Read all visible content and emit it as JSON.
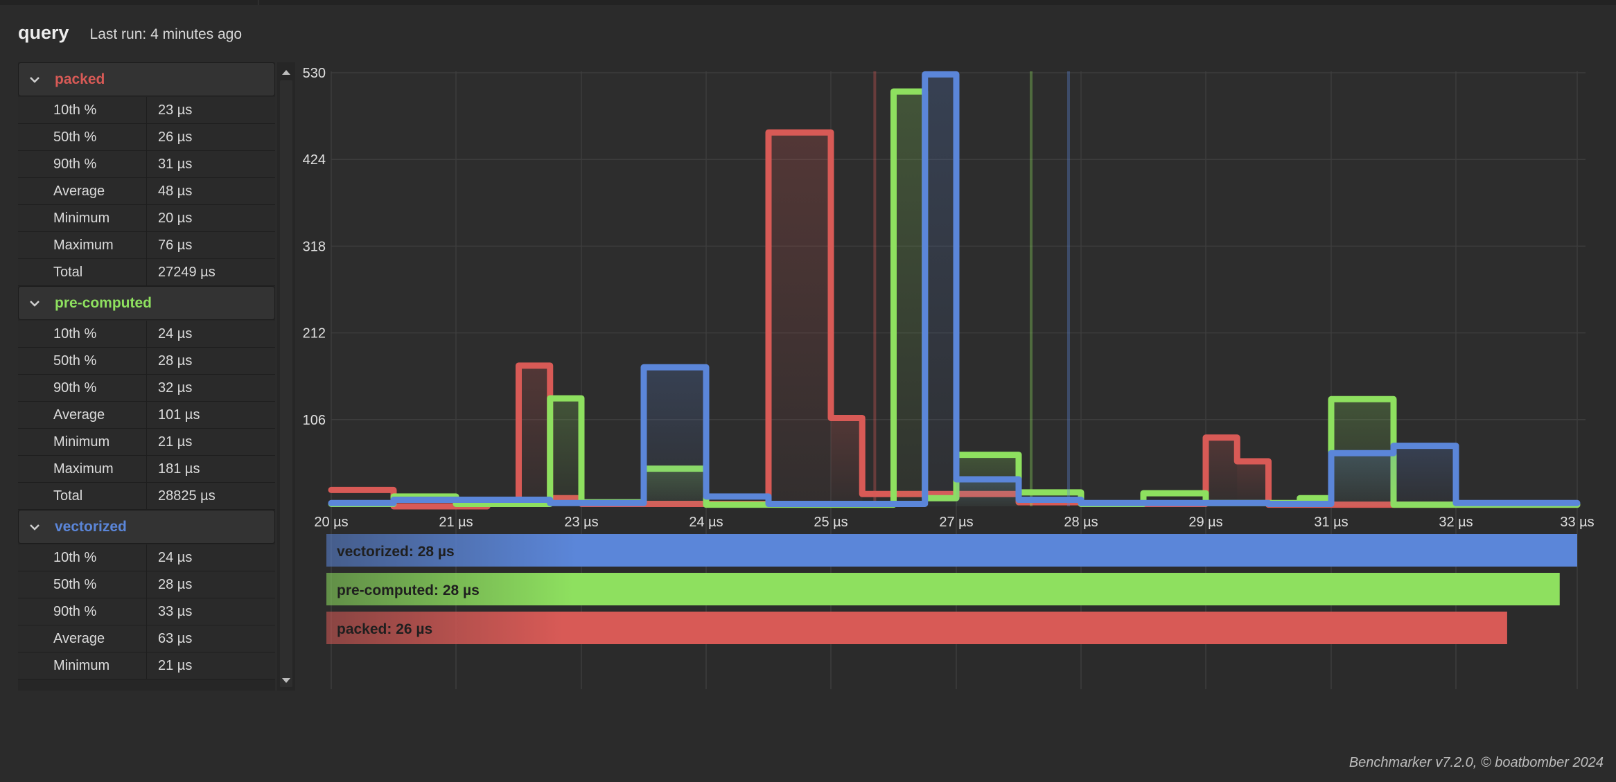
{
  "header": {
    "title": "query",
    "last_run": "Last run: 4 minutes ago"
  },
  "groups": [
    {
      "name": "packed",
      "color": "#d85a56",
      "expanded": true,
      "rows": [
        {
          "label": "10th %",
          "value": "23 µs"
        },
        {
          "label": "50th %",
          "value": "26 µs"
        },
        {
          "label": "90th %",
          "value": "31 µs"
        },
        {
          "label": "Average",
          "value": "48 µs"
        },
        {
          "label": "Minimum",
          "value": "20 µs"
        },
        {
          "label": "Maximum",
          "value": "76 µs"
        },
        {
          "label": "Total",
          "value": "27249 µs"
        }
      ]
    },
    {
      "name": "pre-computed",
      "color": "#8ee05f",
      "expanded": true,
      "rows": [
        {
          "label": "10th %",
          "value": "24 µs"
        },
        {
          "label": "50th %",
          "value": "28 µs"
        },
        {
          "label": "90th %",
          "value": "32 µs"
        },
        {
          "label": "Average",
          "value": "101 µs"
        },
        {
          "label": "Minimum",
          "value": "21 µs"
        },
        {
          "label": "Maximum",
          "value": "181 µs"
        },
        {
          "label": "Total",
          "value": "28825 µs"
        }
      ]
    },
    {
      "name": "vectorized",
      "color": "#5b86d9",
      "expanded": true,
      "rows": [
        {
          "label": "10th %",
          "value": "24 µs"
        },
        {
          "label": "50th %",
          "value": "28 µs"
        },
        {
          "label": "90th %",
          "value": "33 µs"
        },
        {
          "label": "Average",
          "value": "63 µs"
        },
        {
          "label": "Minimum",
          "value": "21 µs"
        }
      ]
    }
  ],
  "colors": {
    "background": "#2b2b2b",
    "grid": "#3d3d3d",
    "axis_text": "#e0e0e0"
  },
  "icons": {
    "group_toggle": "chevron-down-icon",
    "scroll_up": "arrow-up-icon",
    "scroll_down": "arrow-down-icon"
  },
  "chart_data": {
    "type": "histogram",
    "y_ticks": [
      "530",
      "424",
      "318",
      "212",
      "106"
    ],
    "x_ticks": [
      "20 µs",
      "21 µs",
      "23 µs",
      "24 µs",
      "25 µs",
      "27 µs",
      "28 µs",
      "29 µs",
      "31 µs",
      "32 µs",
      "33 µs"
    ],
    "xlim": [
      20,
      33
    ],
    "ylim": [
      0,
      530
    ],
    "grid": true,
    "series": [
      {
        "name": "packed",
        "color": "#d85a56",
        "bins": [
          {
            "x0": 20.0,
            "x1": 20.5,
            "count": 20
          },
          {
            "x0": 20.5,
            "x1": 21.5,
            "count": 0
          },
          {
            "x0": 21.5,
            "x1": 22.0,
            "count": 5
          },
          {
            "x0": 22.0,
            "x1": 22.5,
            "count": 172
          },
          {
            "x0": 22.5,
            "x1": 23.0,
            "count": 10
          },
          {
            "x0": 23.0,
            "x1": 24.5,
            "count": 3
          },
          {
            "x0": 24.5,
            "x1": 25.0,
            "count": 457
          },
          {
            "x0": 25.0,
            "x1": 25.5,
            "count": 108
          },
          {
            "x0": 25.5,
            "x1": 27.5,
            "count": 15
          },
          {
            "x0": 27.5,
            "x1": 28.0,
            "count": 5
          },
          {
            "x0": 28.0,
            "x1": 29.0,
            "count": 3
          },
          {
            "x0": 29.0,
            "x1": 29.5,
            "count": 84
          },
          {
            "x0": 29.5,
            "x1": 30.0,
            "count": 55
          },
          {
            "x0": 30.0,
            "x1": 33.0,
            "count": 2
          }
        ],
        "marker": 25.7
      },
      {
        "name": "pre-computed",
        "color": "#8ee05f",
        "bins": [
          {
            "x0": 20.0,
            "x1": 20.5,
            "count": 3
          },
          {
            "x0": 20.5,
            "x1": 21.0,
            "count": 12
          },
          {
            "x0": 21.0,
            "x1": 22.5,
            "count": 3
          },
          {
            "x0": 22.5,
            "x1": 23.0,
            "count": 132
          },
          {
            "x0": 23.0,
            "x1": 23.5,
            "count": 5
          },
          {
            "x0": 23.5,
            "x1": 24.0,
            "count": 46
          },
          {
            "x0": 24.0,
            "x1": 26.0,
            "count": 2
          },
          {
            "x0": 26.0,
            "x1": 26.5,
            "count": 507
          },
          {
            "x0": 26.5,
            "x1": 27.0,
            "count": 10
          },
          {
            "x0": 27.0,
            "x1": 27.5,
            "count": 63
          },
          {
            "x0": 27.5,
            "x1": 28.0,
            "count": 17
          },
          {
            "x0": 28.0,
            "x1": 28.5,
            "count": 3
          },
          {
            "x0": 28.5,
            "x1": 29.0,
            "count": 16
          },
          {
            "x0": 29.0,
            "x1": 30.5,
            "count": 4
          },
          {
            "x0": 30.5,
            "x1": 31.0,
            "count": 10
          },
          {
            "x0": 31.0,
            "x1": 31.5,
            "count": 131
          },
          {
            "x0": 31.5,
            "x1": 33.0,
            "count": 2
          }
        ],
        "marker": 27.6
      },
      {
        "name": "vectorized",
        "color": "#5b86d9",
        "bins": [
          {
            "x0": 20.0,
            "x1": 20.5,
            "count": 4
          },
          {
            "x0": 20.5,
            "x1": 22.5,
            "count": 8
          },
          {
            "x0": 22.5,
            "x1": 23.5,
            "count": 4
          },
          {
            "x0": 23.5,
            "x1": 24.0,
            "count": 170
          },
          {
            "x0": 24.0,
            "x1": 24.5,
            "count": 12
          },
          {
            "x0": 24.5,
            "x1": 26.5,
            "count": 3
          },
          {
            "x0": 26.5,
            "x1": 27.0,
            "count": 528
          },
          {
            "x0": 27.0,
            "x1": 27.5,
            "count": 33
          },
          {
            "x0": 27.5,
            "x1": 28.0,
            "count": 8
          },
          {
            "x0": 28.0,
            "x1": 30.0,
            "count": 4
          },
          {
            "x0": 30.0,
            "x1": 31.0,
            "count": 3
          },
          {
            "x0": 31.0,
            "x1": 31.5,
            "count": 65
          },
          {
            "x0": 31.5,
            "x1": 32.0,
            "count": 74
          },
          {
            "x0": 32.0,
            "x1": 33.0,
            "count": 4
          }
        ],
        "marker": 27.9
      }
    ],
    "summary_bars": [
      {
        "label": "vectorized: 28 µs",
        "color": "#5b86d9",
        "fraction": 1.0
      },
      {
        "label": "pre-computed: 28 µs",
        "color": "#8ee05f",
        "fraction": 0.986
      },
      {
        "label": "packed: 26 µs",
        "color": "#d85a56",
        "fraction": 0.944
      }
    ]
  },
  "footer": {
    "text": "Benchmarker v7.2.0, © boatbomber 2024"
  }
}
